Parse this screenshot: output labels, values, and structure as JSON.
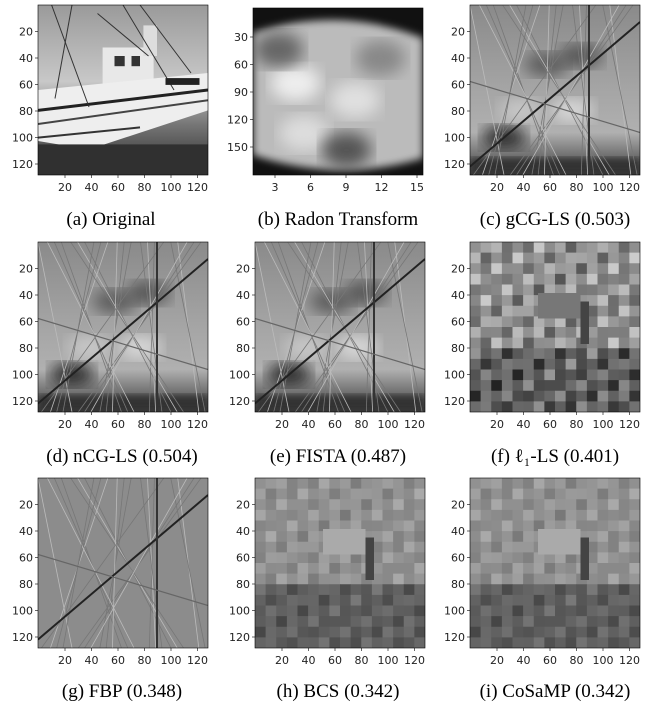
{
  "panels": [
    {
      "caption": "(a) Original",
      "xticks": [
        20,
        40,
        60,
        80,
        100,
        120
      ],
      "yticks": [
        20,
        40,
        60,
        80,
        100,
        120
      ]
    },
    {
      "caption": "(b) Radon Transform",
      "xticks": [
        3,
        6,
        9,
        12,
        15
      ],
      "yticks": [
        30,
        60,
        90,
        120,
        150
      ]
    },
    {
      "caption": "(c) gCG-LS (0.503)",
      "xticks": [
        20,
        40,
        60,
        80,
        100,
        120
      ],
      "yticks": [
        20,
        40,
        60,
        80,
        100,
        120
      ]
    },
    {
      "caption": "(d) nCG-LS (0.504)",
      "xticks": [
        20,
        40,
        60,
        80,
        100,
        120
      ],
      "yticks": [
        20,
        40,
        60,
        80,
        100,
        120
      ]
    },
    {
      "caption": "(e) FISTA (0.487)",
      "xticks": [
        20,
        40,
        60,
        80,
        100,
        120
      ],
      "yticks": [
        20,
        40,
        60,
        80,
        100,
        120
      ]
    },
    {
      "caption": "(f) ℓ₁-LS (0.401)",
      "xticks": [
        20,
        40,
        60,
        80,
        100,
        120
      ],
      "yticks": [
        20,
        40,
        60,
        80,
        100,
        120
      ]
    },
    {
      "caption": "(g) FBP (0.348)",
      "xticks": [
        20,
        40,
        60,
        80,
        100,
        120
      ],
      "yticks": [
        20,
        40,
        60,
        80,
        100,
        120
      ]
    },
    {
      "caption": "(h) BCS (0.342)",
      "xticks": [
        20,
        40,
        60,
        80,
        100,
        120
      ],
      "yticks": [
        20,
        40,
        60,
        80,
        100,
        120
      ]
    },
    {
      "caption": "(i) CoSaMP (0.342)",
      "xticks": [
        20,
        40,
        60,
        80,
        100,
        120
      ],
      "yticks": [
        20,
        40,
        60,
        80,
        100,
        120
      ]
    }
  ]
}
